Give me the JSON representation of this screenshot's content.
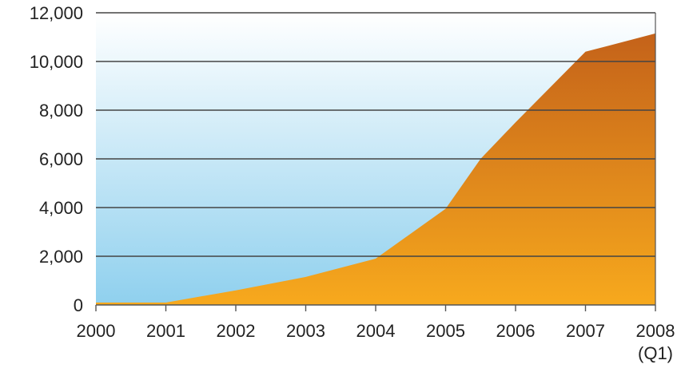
{
  "chart_data": {
    "type": "area",
    "title": "",
    "xlabel": "",
    "ylabel": "",
    "ylim": [
      0,
      12000
    ],
    "grid": true,
    "y_ticks": [
      {
        "value": 0,
        "label": "0"
      },
      {
        "value": 2000,
        "label": "2,000"
      },
      {
        "value": 4000,
        "label": "4,000"
      },
      {
        "value": 6000,
        "label": "6,000"
      },
      {
        "value": 8000,
        "label": "8,000"
      },
      {
        "value": 10000,
        "label": "10,000"
      },
      {
        "value": 12000,
        "label": "12,000"
      }
    ],
    "x_ticks": [
      {
        "label": "2000",
        "sublabel": ""
      },
      {
        "label": "2001",
        "sublabel": ""
      },
      {
        "label": "2002",
        "sublabel": ""
      },
      {
        "label": "2003",
        "sublabel": ""
      },
      {
        "label": "2004",
        "sublabel": ""
      },
      {
        "label": "2005",
        "sublabel": ""
      },
      {
        "label": "2006",
        "sublabel": ""
      },
      {
        "label": "2007",
        "sublabel": ""
      },
      {
        "label": "2008",
        "sublabel": "(Q1)"
      }
    ],
    "series": [
      {
        "color_top": "#c4621a",
        "color_bottom": "#f7a91d",
        "points": [
          {
            "x": 0,
            "y": 100
          },
          {
            "x": 1,
            "y": 100
          },
          {
            "x": 2,
            "y": 600
          },
          {
            "x": 3,
            "y": 1150
          },
          {
            "x": 4,
            "y": 1900
          },
          {
            "x": 5,
            "y": 3950
          },
          {
            "x": 5.5,
            "y": 6000
          },
          {
            "x": 6,
            "y": 7500
          },
          {
            "x": 7,
            "y": 10400
          },
          {
            "x": 8,
            "y": 11150
          }
        ]
      }
    ],
    "background_gradient": {
      "top": "#ffffff",
      "bottom": "#8fd0ee"
    },
    "gridline_color": "#444444",
    "axis_color": "#555555"
  }
}
